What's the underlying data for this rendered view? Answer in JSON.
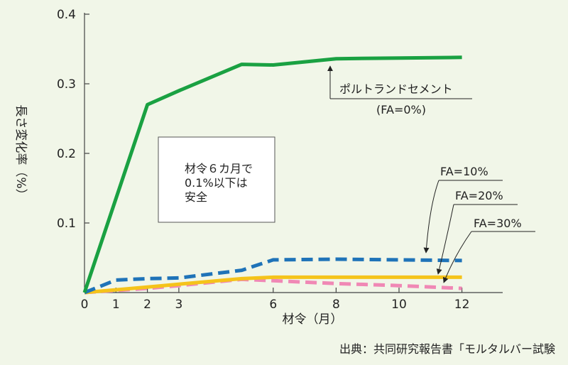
{
  "chart_data": {
    "type": "line",
    "x": [
      0,
      1,
      2,
      3,
      5,
      6,
      8,
      10,
      12
    ],
    "series": [
      {
        "name": "ポルトランドセメント (FA=0%)",
        "color": "#1aa142",
        "style": "solid",
        "values": [
          0,
          0.135,
          0.27,
          0.29,
          0.328,
          0.327,
          0.336,
          0.337,
          0.338
        ]
      },
      {
        "name": "FA=10%",
        "color": "#1f73b8",
        "style": "dashed",
        "values": [
          0,
          0.018,
          0.02,
          0.021,
          0.032,
          0.047,
          0.048,
          0.047,
          0.046
        ]
      },
      {
        "name": "FA=20%",
        "color": "#f5c31a",
        "style": "solid",
        "values": [
          0,
          0.004,
          0.008,
          0.012,
          0.02,
          0.022,
          0.022,
          0.022,
          0.022
        ]
      },
      {
        "name": "FA=30%",
        "color": "#f088b5",
        "style": "dashed",
        "values": [
          0,
          0.003,
          0.006,
          0.01,
          0.019,
          0.017,
          0.013,
          0.01,
          0.006
        ]
      }
    ],
    "xticks": [
      "0",
      "1",
      "2",
      "3",
      "6",
      "8",
      "10",
      "12"
    ],
    "yticks": [
      "0.1",
      "0.2",
      "0.3",
      "0.4"
    ],
    "xlabel": "材令（月）",
    "ylabel": "長さ変化率（%）",
    "xlim": [
      0,
      13.3
    ],
    "ylim": [
      0,
      0.4
    ],
    "legend": "inline-annotations"
  },
  "annotations": {
    "fa0_line1": "ポルトランドセメント",
    "fa0_line2": "(FA=0%)",
    "fa10": "FA=10%",
    "fa20": "FA=20%",
    "fa30": "FA=30%",
    "box_line1": "材令６カ月で",
    "box_line2": "0.1%以下は",
    "box_line3": "安全"
  },
  "source": "出典：共同研究報告書「モルタルバー試験"
}
